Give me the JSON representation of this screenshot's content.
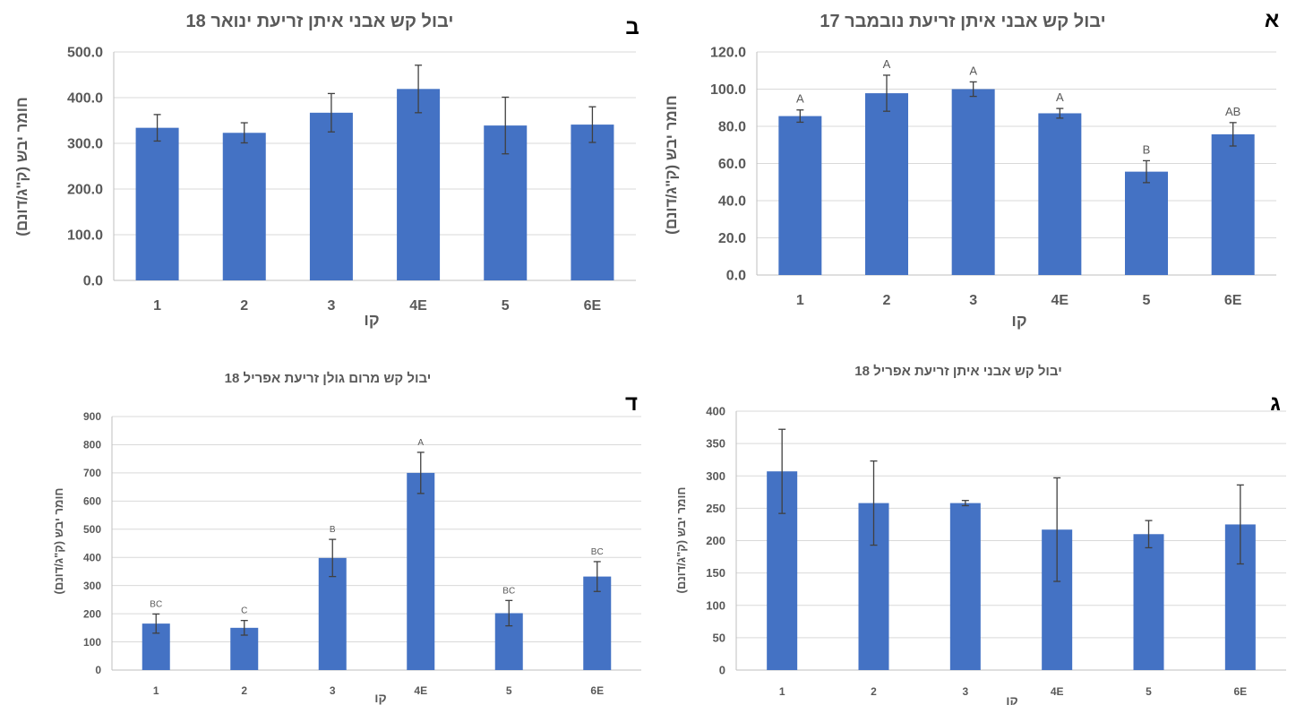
{
  "colors": {
    "bar": "#4472C4",
    "grid": "#D9D9D9",
    "text": "#595959"
  },
  "chart_data": [
    {
      "id": "a",
      "type": "bar",
      "panel_letter": "א",
      "title": "יבול קש אבני איתן זריעת נובמבר 17",
      "xlabel": "קו",
      "ylabel": "חומר יבש (ק\"ג/דונם)",
      "categories": [
        "1",
        "2",
        "3",
        "4E",
        "5",
        "6E"
      ],
      "values": [
        85.5,
        97.8,
        100.0,
        87.0,
        55.6,
        75.7
      ],
      "errors": [
        3.3,
        9.7,
        3.9,
        2.6,
        5.9,
        6.3
      ],
      "significance": [
        "A",
        "A",
        "A",
        "A",
        "B",
        "AB"
      ],
      "ylim": [
        0,
        120
      ],
      "yticks": [
        "0.0",
        "20.0",
        "40.0",
        "60.0",
        "80.0",
        "100.0",
        "120.0"
      ],
      "grid": true
    },
    {
      "id": "b",
      "type": "bar",
      "panel_letter": "ב",
      "title": "יבול קש אבני איתן זריעת ינואר 18",
      "xlabel": "קו",
      "ylabel": "חומר יבש (ק\"ג/דונם)",
      "categories": [
        "1",
        "2",
        "3",
        "4E",
        "5",
        "6E"
      ],
      "values": [
        334,
        323,
        367,
        419,
        339,
        341
      ],
      "errors": [
        29,
        22,
        42,
        52,
        62,
        39
      ],
      "significance": [],
      "ylim": [
        0,
        500
      ],
      "yticks": [
        "0.0",
        "100.0",
        "200.0",
        "300.0",
        "400.0",
        "500.0"
      ],
      "grid": true
    },
    {
      "id": "c",
      "type": "bar",
      "panel_letter": "ג",
      "title": "יבול קש אבני איתן זריעת אפריל 18",
      "xlabel": "קו",
      "ylabel": "חומר יבש (ק\"ג/דונם)",
      "categories": [
        "1",
        "2",
        "3",
        "4E",
        "5",
        "6E"
      ],
      "values": [
        307,
        258,
        258,
        217,
        210,
        225
      ],
      "errors": [
        65,
        65,
        4,
        80,
        21,
        61
      ],
      "significance": [],
      "ylim": [
        0,
        400
      ],
      "yticks": [
        "0",
        "50",
        "100",
        "150",
        "200",
        "250",
        "300",
        "350",
        "400"
      ],
      "grid": true
    },
    {
      "id": "d",
      "type": "bar",
      "panel_letter": "ד",
      "title": "יבול קש מרום גולן זריעת אפריל 18",
      "xlabel": "קו",
      "ylabel": "חומר יבש (ק\"ג/דונם)",
      "categories": [
        "1",
        "2",
        "3",
        "4E",
        "5",
        "6E"
      ],
      "values": [
        165,
        150,
        398,
        700,
        202,
        332
      ],
      "errors": [
        34,
        26,
        66,
        73,
        45,
        53
      ],
      "significance": [
        "BC",
        "C",
        "B",
        "A",
        "BC",
        "BC"
      ],
      "ylim": [
        0,
        900
      ],
      "yticks": [
        "0",
        "100",
        "200",
        "300",
        "400",
        "500",
        "600",
        "700",
        "800",
        "900"
      ],
      "grid": true
    }
  ]
}
